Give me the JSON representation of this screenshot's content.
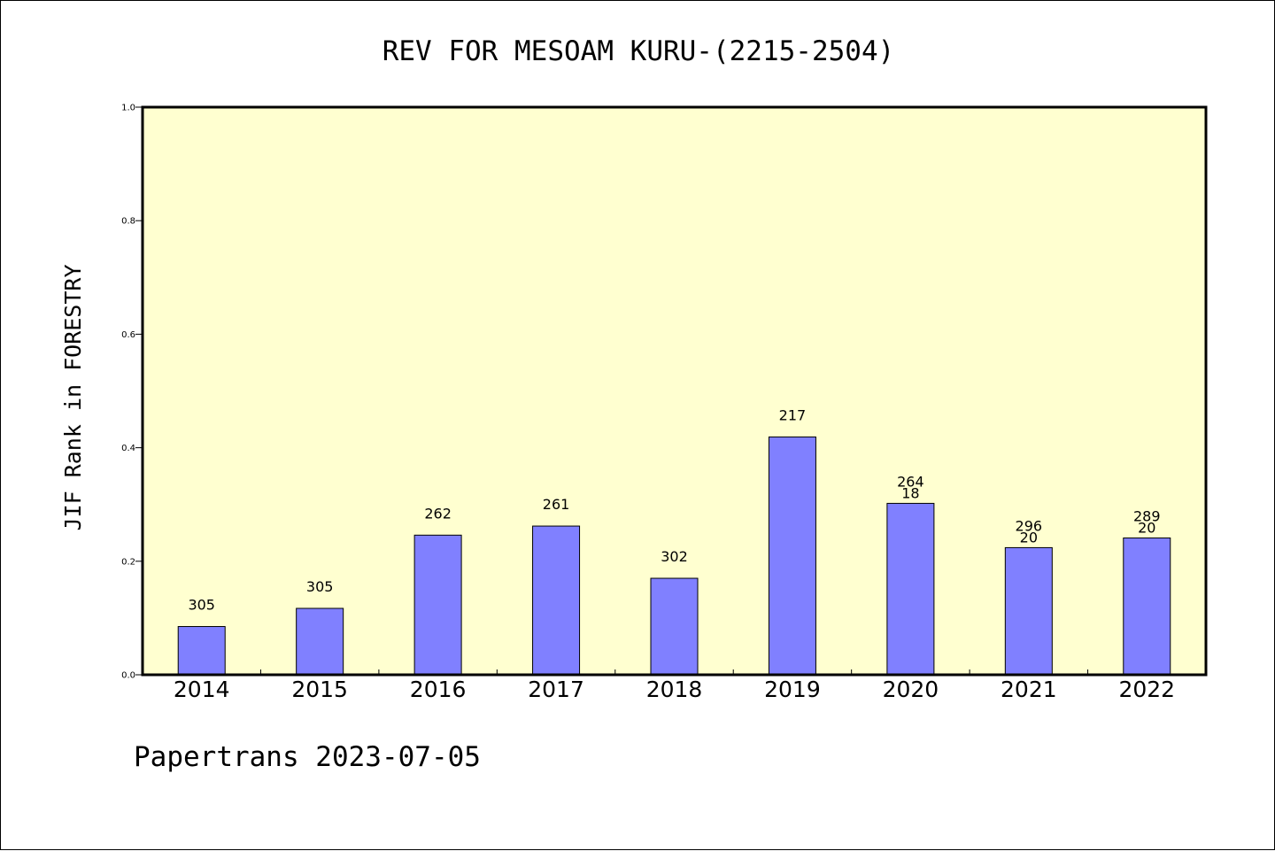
{
  "chart_data": {
    "type": "bar",
    "title": "REV FOR MESOAM KURU-(2215-2504)",
    "xlabel": "",
    "ylabel": "JIF Rank in FORESTRY",
    "ylim": [
      0,
      1.0
    ],
    "yticks": [
      "0.0",
      "0.2",
      "0.4",
      "0.6",
      "0.8",
      "1.0"
    ],
    "grid": false,
    "legend": "none",
    "categories": [
      "2014",
      "2015",
      "2016",
      "2017",
      "2018",
      "2019",
      "2020",
      "2021",
      "2022"
    ],
    "values": [
      0.085,
      0.117,
      0.246,
      0.262,
      0.17,
      0.419,
      0.302,
      0.224,
      0.241
    ],
    "data_labels": [
      [
        "305"
      ],
      [
        "305"
      ],
      [
        "262"
      ],
      [
        "261"
      ],
      [
        "302"
      ],
      [
        "217"
      ],
      [
        "264",
        "18"
      ],
      [
        "296",
        "20"
      ],
      [
        "289",
        "20"
      ]
    ],
    "colors": {
      "bar": "#8080ff",
      "plot_bg": "#ffffd0",
      "axis": "#000000"
    }
  },
  "footer": {
    "text": "Papertrans 2023-07-05"
  }
}
